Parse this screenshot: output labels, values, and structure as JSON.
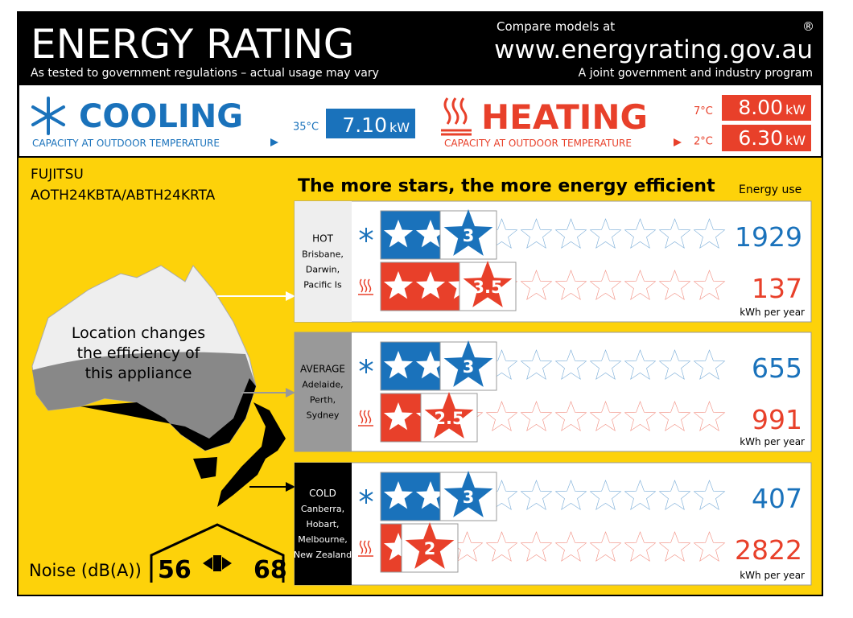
{
  "header": {
    "title": "ENERGY RATING",
    "subtitle": "As tested to government regulations – actual usage may vary",
    "compare": "Compare models at",
    "url": "www.energyrating.gov.au",
    "program": "A joint government and industry program",
    "registered": "®"
  },
  "cooling": {
    "title": "COOLING",
    "caption": "CAPACITY AT OUTDOOR TEMPERATURE",
    "ratings": [
      {
        "temp": "35°C",
        "capacity": "7.10",
        "unit": "kW"
      }
    ]
  },
  "heating": {
    "title": "HEATING",
    "caption": "CAPACITY AT OUTDOOR TEMPERATURE",
    "ratings": [
      {
        "temp": "7°C",
        "capacity": "8.00",
        "unit": "kW"
      },
      {
        "temp": "2°C",
        "capacity": "6.30",
        "unit": "kW"
      }
    ]
  },
  "product": {
    "brand": "FUJITSU",
    "model": "AOTH24KBTA/ABTH24KRTA"
  },
  "map_note": [
    "Location changes",
    "the efficiency of",
    "this appliance"
  ],
  "noise": {
    "label": "Noise (dB(A))",
    "indoor": "56",
    "outdoor": "68"
  },
  "zones": {
    "heading": "The more stars, the more energy efficient",
    "energy_use_header": "Energy use",
    "unit": "kWh per year",
    "max_stars": 10,
    "regions": [
      {
        "name": "HOT",
        "places": [
          "Brisbane,",
          "Darwin,",
          "Pacific Is"
        ],
        "cooling_stars": 3,
        "cooling_energy": 1929,
        "heating_stars": 3.5,
        "heating_energy": 137
      },
      {
        "name": "AVERAGE",
        "places": [
          "Adelaide,",
          "Perth,",
          "Sydney"
        ],
        "cooling_stars": 3,
        "cooling_energy": 655,
        "heating_stars": 2.5,
        "heating_energy": 991
      },
      {
        "name": "COLD",
        "places": [
          "Canberra,",
          "Hobart,",
          "Melbourne,",
          "New Zealand"
        ],
        "cooling_stars": 3,
        "cooling_energy": 407,
        "heating_stars": 2,
        "heating_energy": 2822
      }
    ]
  }
}
